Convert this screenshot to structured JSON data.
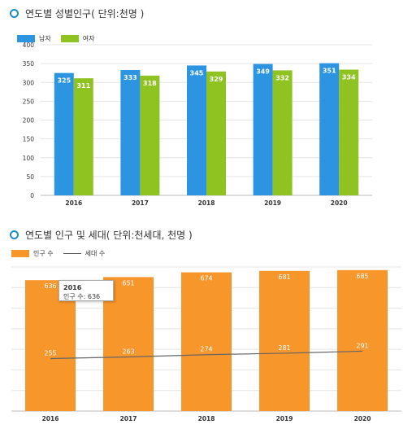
{
  "section1": {
    "title": "연도별 성별인구( 단위:천명 )"
  },
  "section2": {
    "title": "연도별 인구 및 세대( 단위:천세대, 천명 )"
  },
  "tooltip": {
    "year": "2016",
    "label": "인구 수: 636"
  },
  "colors": {
    "male": "#2c94e0",
    "female": "#8fc322",
    "population": "#f7962b",
    "households": "#666666",
    "title_dot": "#1e88c8"
  },
  "chart_data": [
    {
      "type": "bar",
      "categories": [
        "2016",
        "2017",
        "2018",
        "2019",
        "2020"
      ],
      "series": [
        {
          "name": "남자",
          "values": [
            325,
            333,
            345,
            349,
            351
          ]
        },
        {
          "name": "여자",
          "values": [
            311,
            318,
            329,
            332,
            334
          ]
        }
      ],
      "ylim": [
        0,
        400
      ],
      "yticks": [
        "0",
        "50",
        "100",
        "150",
        "200",
        "250",
        "300",
        "350",
        "400"
      ],
      "grid": true,
      "legend": "top-left"
    },
    {
      "type": "bar",
      "categories": [
        "2016",
        "2017",
        "2018",
        "2019",
        "2020"
      ],
      "series": [
        {
          "name": "인구 수",
          "type": "bar",
          "values": [
            636,
            651,
            674,
            681,
            685
          ]
        },
        {
          "name": "세대 수",
          "type": "line",
          "values": [
            255,
            263,
            274,
            281,
            291
          ]
        }
      ],
      "ylim": [
        0,
        700
      ],
      "grid": true,
      "legend": "top-left"
    }
  ]
}
